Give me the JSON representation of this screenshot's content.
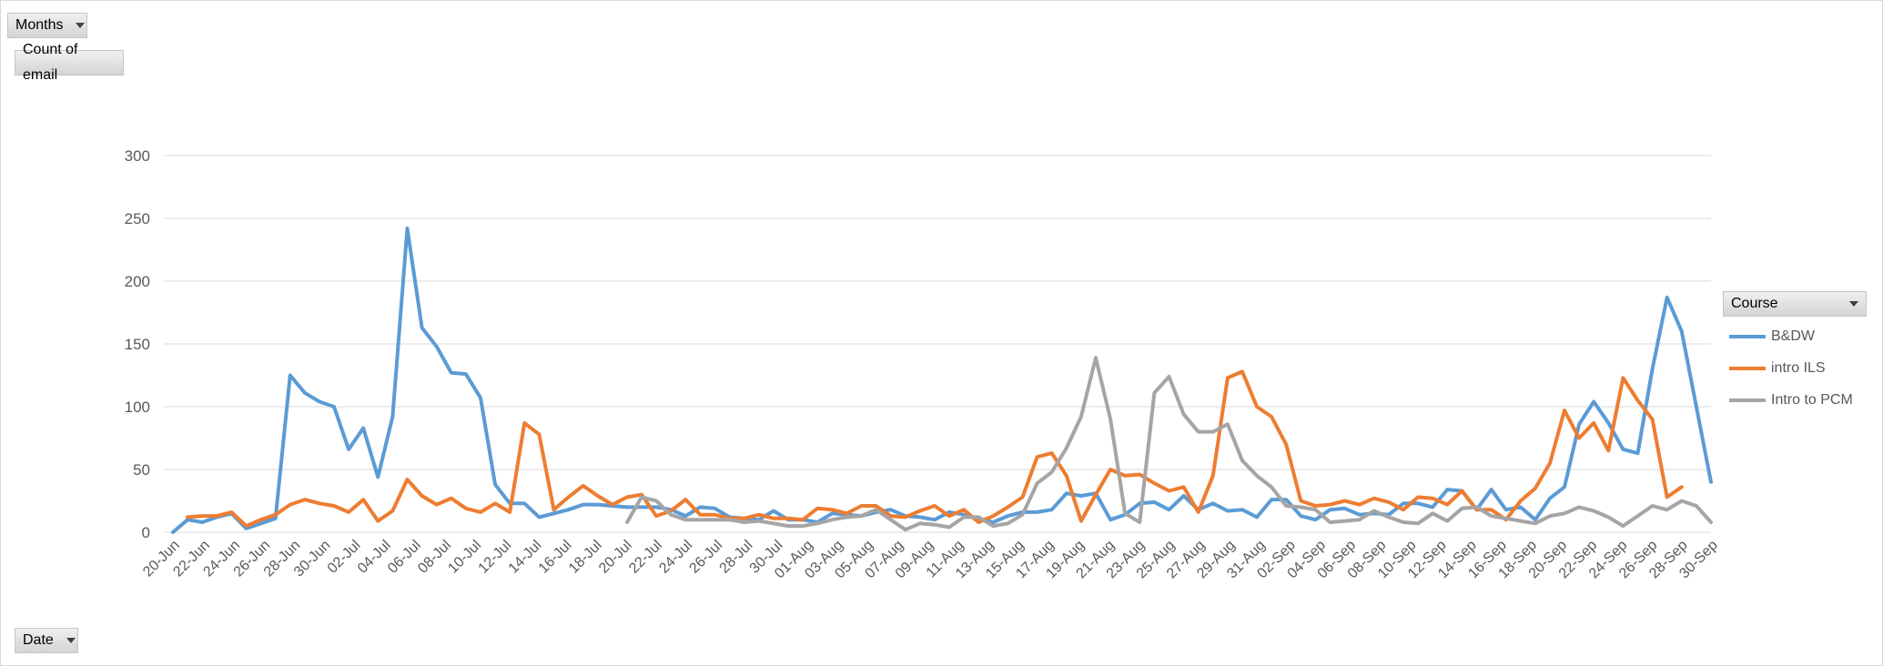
{
  "filters": {
    "months_label": "Months",
    "values_label": "Count of email",
    "date_label": "Date",
    "course_label": "Course"
  },
  "colors": {
    "gridline": "#d9d9d9",
    "axis_text": "#595959"
  },
  "chart_data": {
    "type": "line",
    "title": "",
    "xlabel": "",
    "ylabel": "",
    "ylim": [
      0,
      300
    ],
    "yticks": [
      0,
      50,
      100,
      150,
      200,
      250,
      300
    ],
    "grid": true,
    "legend_position": "right",
    "x_tick_labels": [
      "20-Jun",
      "22-Jun",
      "24-Jun",
      "26-Jun",
      "28-Jun",
      "30-Jun",
      "02-Jul",
      "04-Jul",
      "06-Jul",
      "08-Jul",
      "10-Jul",
      "12-Jul",
      "14-Jul",
      "16-Jul",
      "18-Jul",
      "20-Jul",
      "22-Jul",
      "24-Jul",
      "26-Jul",
      "28-Jul",
      "30-Jul",
      "01-Aug",
      "03-Aug",
      "05-Aug",
      "07-Aug",
      "09-Aug",
      "11-Aug",
      "13-Aug",
      "15-Aug",
      "17-Aug",
      "19-Aug",
      "21-Aug",
      "23-Aug",
      "25-Aug",
      "27-Aug",
      "29-Aug",
      "31-Aug",
      "02-Sep",
      "04-Sep",
      "06-Sep",
      "08-Sep",
      "10-Sep",
      "12-Sep",
      "14-Sep",
      "16-Sep",
      "18-Sep",
      "20-Sep",
      "22-Sep",
      "24-Sep",
      "26-Sep",
      "28-Sep",
      "30-Sep"
    ],
    "series": [
      {
        "name": "B&DW",
        "color": "#5b9bd5",
        "values": [
          0,
          10,
          8,
          12,
          15,
          3,
          7,
          11,
          125,
          111,
          104,
          100,
          66,
          83,
          44,
          92,
          242,
          163,
          148,
          127,
          126,
          107,
          38,
          23,
          23,
          12,
          15,
          18,
          22,
          22,
          21,
          20,
          20,
          20,
          18,
          13,
          20,
          19,
          12,
          11,
          10,
          17,
          10,
          10,
          8,
          15,
          14,
          13,
          16,
          18,
          13,
          12,
          10,
          16,
          14,
          11,
          8,
          13,
          16,
          16,
          18,
          31,
          29,
          31,
          10,
          14,
          23,
          24,
          18,
          29,
          18,
          23,
          17,
          18,
          12,
          26,
          26,
          13,
          10,
          18,
          19,
          14,
          15,
          14,
          23,
          23,
          20,
          34,
          33,
          18,
          34,
          18,
          20,
          10,
          27,
          36,
          86,
          104,
          87,
          66,
          63,
          130,
          187,
          160,
          100,
          40
        ]
      },
      {
        "name": "intro ILS",
        "color": "#ed7d31",
        "values": [
          null,
          12,
          13,
          13,
          16,
          5,
          10,
          14,
          22,
          26,
          23,
          21,
          16,
          26,
          9,
          17,
          42,
          29,
          22,
          27,
          19,
          16,
          23,
          16,
          87,
          78,
          18,
          28,
          37,
          29,
          22,
          28,
          30,
          13,
          17,
          26,
          14,
          14,
          11,
          11,
          14,
          11,
          11,
          10,
          19,
          18,
          15,
          21,
          21,
          13,
          12,
          17,
          21,
          13,
          18,
          8,
          13,
          20,
          28,
          60,
          63,
          45,
          9,
          30,
          50,
          45,
          46,
          39,
          33,
          36,
          16,
          45,
          123,
          128,
          100,
          92,
          70,
          25,
          21,
          22,
          25,
          22,
          27,
          24,
          18,
          28,
          27,
          22,
          33,
          18,
          18,
          10,
          25,
          35,
          55,
          97,
          75,
          87,
          65,
          123,
          105,
          90,
          28,
          36
        ]
      },
      {
        "name": "Intro to PCM",
        "color": "#a5a5a5",
        "values": [
          null,
          null,
          null,
          null,
          null,
          null,
          null,
          null,
          null,
          null,
          null,
          null,
          null,
          null,
          null,
          null,
          null,
          null,
          null,
          null,
          null,
          null,
          null,
          null,
          null,
          null,
          null,
          null,
          null,
          null,
          null,
          8,
          28,
          25,
          14,
          10,
          10,
          10,
          10,
          8,
          9,
          7,
          5,
          5,
          7,
          10,
          12,
          13,
          18,
          10,
          2,
          7,
          6,
          4,
          12,
          12,
          5,
          7,
          14,
          39,
          48,
          67,
          92,
          139,
          90,
          15,
          8,
          111,
          124,
          94,
          80,
          80,
          86,
          57,
          45,
          36,
          21,
          20,
          18,
          8,
          9,
          10,
          17,
          12,
          8,
          7,
          15,
          9,
          19,
          20,
          13,
          11,
          9,
          7,
          13,
          15,
          20,
          17,
          12,
          5,
          13,
          21,
          18,
          25,
          21,
          8
        ]
      }
    ]
  }
}
